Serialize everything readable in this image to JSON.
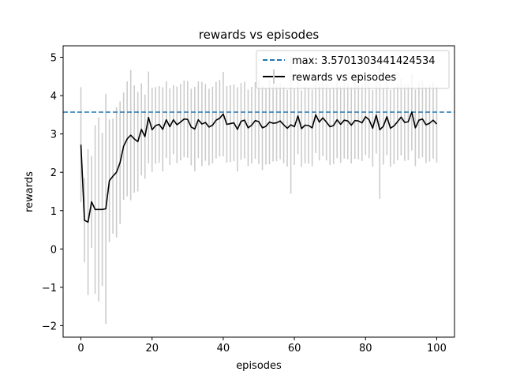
{
  "chart_data": {
    "type": "line",
    "title": "rewards vs episodes",
    "xlabel": "episodes",
    "ylabel": "rewards",
    "xlim": [
      -5,
      105
    ],
    "ylim": [
      -2.3,
      5.3
    ],
    "xticks": [
      0,
      20,
      40,
      60,
      80,
      100
    ],
    "yticks": [
      -2,
      -1,
      0,
      1,
      2,
      3,
      4,
      5
    ],
    "grid": false,
    "legend_position": "top-right",
    "max_line": {
      "label": "max: 3.5701303441424534",
      "value": 3.5701303441424534,
      "color": "#1f77b4"
    },
    "series": [
      {
        "name": "rewards vs episodes",
        "color": "#000000",
        "error_color": "#cccccc",
        "x": [
          0,
          1,
          2,
          3,
          4,
          5,
          6,
          7,
          8,
          9,
          10,
          11,
          12,
          13,
          14,
          15,
          16,
          17,
          18,
          19,
          20,
          21,
          22,
          23,
          24,
          25,
          26,
          27,
          28,
          29,
          30,
          31,
          32,
          33,
          34,
          35,
          36,
          37,
          38,
          39,
          40,
          41,
          42,
          43,
          44,
          45,
          46,
          47,
          48,
          49,
          50,
          51,
          52,
          53,
          54,
          55,
          56,
          57,
          58,
          59,
          60,
          61,
          62,
          63,
          64,
          65,
          66,
          67,
          68,
          69,
          70,
          71,
          72,
          73,
          74,
          75,
          76,
          77,
          78,
          79,
          80,
          81,
          82,
          83,
          84,
          85,
          86,
          87,
          88,
          89,
          90,
          91,
          92,
          93,
          94,
          95,
          96,
          97,
          98,
          99,
          100
        ],
        "y": [
          2.72,
          0.75,
          0.7,
          1.23,
          1.03,
          1.03,
          1.03,
          1.05,
          1.78,
          1.9,
          2.0,
          2.25,
          2.68,
          2.87,
          2.97,
          2.87,
          2.8,
          3.12,
          2.93,
          3.43,
          3.11,
          3.22,
          3.25,
          3.12,
          3.37,
          3.19,
          3.37,
          3.24,
          3.31,
          3.39,
          3.38,
          3.18,
          3.13,
          3.37,
          3.26,
          3.3,
          3.18,
          3.23,
          3.36,
          3.41,
          3.52,
          3.25,
          3.27,
          3.29,
          3.12,
          3.33,
          3.36,
          3.16,
          3.23,
          3.35,
          3.32,
          3.16,
          3.2,
          3.31,
          3.28,
          3.29,
          3.34,
          3.24,
          3.15,
          3.24,
          3.19,
          3.47,
          3.14,
          3.23,
          3.22,
          3.16,
          3.5,
          3.31,
          3.42,
          3.31,
          3.19,
          3.22,
          3.37,
          3.25,
          3.36,
          3.34,
          3.23,
          3.35,
          3.34,
          3.29,
          3.45,
          3.37,
          3.15,
          3.49,
          3.11,
          3.2,
          3.45,
          3.15,
          3.21,
          3.32,
          3.44,
          3.3,
          3.32,
          3.57,
          3.16,
          3.36,
          3.39,
          3.24,
          3.28,
          3.36,
          3.26
        ],
        "error": [
          1.5,
          1.1,
          1.9,
          1.2,
          2.2,
          2.4,
          2.0,
          3.0,
          1.6,
          1.5,
          1.7,
          1.6,
          1.4,
          1.5,
          1.7,
          1.4,
          1.3,
          1.2,
          1.1,
          1.2,
          1.1,
          1.0,
          1.0,
          1.1,
          1.0,
          1.0,
          0.9,
          1.0,
          1.0,
          1.0,
          1.0,
          1.0,
          1.1,
          1.0,
          1.1,
          1.0,
          1.0,
          1.0,
          1.0,
          1.0,
          1.1,
          1.0,
          1.0,
          1.0,
          1.1,
          1.0,
          1.0,
          1.0,
          1.0,
          1.0,
          1.1,
          1.1,
          1.0,
          1.1,
          1.0,
          1.0,
          1.0,
          1.0,
          1.0,
          1.8,
          1.0,
          1.0,
          1.0,
          1.0,
          1.0,
          1.0,
          1.0,
          1.0,
          1.0,
          1.0,
          1.0,
          1.0,
          1.0,
          1.0,
          1.0,
          1.0,
          1.0,
          1.0,
          1.0,
          1.0,
          1.0,
          1.0,
          1.0,
          1.0,
          1.8,
          1.0,
          1.0,
          1.0,
          1.0,
          1.0,
          1.0,
          1.0,
          1.0,
          1.0,
          1.0,
          1.0,
          1.0,
          1.0,
          1.0,
          1.0,
          1.0
        ]
      }
    ]
  }
}
